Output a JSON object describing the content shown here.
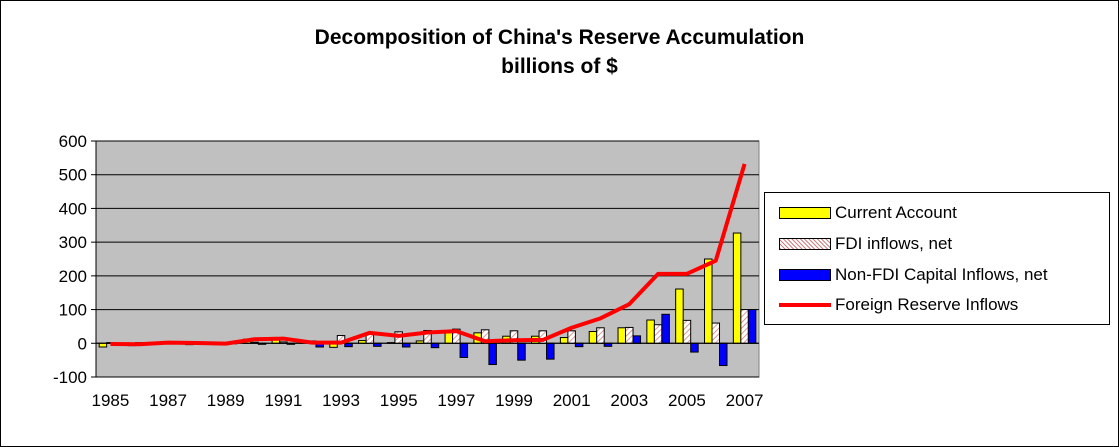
{
  "chart_data": {
    "type": "bar",
    "title": "Decomposition of China's Reserve Accumulation",
    "subtitle": "billions of $",
    "x": [
      1985,
      1986,
      1987,
      1988,
      1989,
      1990,
      1991,
      1992,
      1993,
      1994,
      1995,
      1996,
      1997,
      1998,
      1999,
      2000,
      2001,
      2002,
      2003,
      2004,
      2005,
      2006,
      2007
    ],
    "x_tick_labels": [
      "1985",
      "1987",
      "1989",
      "1991",
      "1993",
      "1995",
      "1997",
      "1999",
      "2001",
      "2003",
      "2005",
      "2007"
    ],
    "y_tick_labels": [
      "600",
      "500",
      "400",
      "300",
      "200",
      "100",
      "0",
      "-100"
    ],
    "ylim": [
      -100,
      600
    ],
    "grid": "horizontal",
    "legend_position": "right",
    "series": [
      {
        "name": "Current Account",
        "type": "bar",
        "color": "#ffff00",
        "values": [
          -11,
          -7,
          0,
          -4,
          -4,
          12,
          13,
          6,
          -12,
          8,
          2,
          7,
          37,
          31,
          21,
          21,
          17,
          35,
          46,
          69,
          161,
          250,
          327
        ]
      },
      {
        "name": "FDI inflows, net",
        "type": "bar",
        "pattern": "hatch",
        "values": [
          2,
          2,
          2,
          2,
          2,
          3,
          4,
          7,
          23,
          32,
          34,
          38,
          42,
          40,
          37,
          37,
          37,
          46,
          47,
          55,
          68,
          60,
          100
        ]
      },
      {
        "name": "Non-FDI Capital Inflows, net",
        "type": "bar",
        "color": "#0000ff",
        "values": [
          -1,
          -1,
          -1,
          -1,
          -1,
          -3,
          -3,
          -11,
          -10,
          -9,
          -11,
          -13,
          -42,
          -63,
          -50,
          -47,
          -10,
          -9,
          22,
          86,
          -26,
          -66,
          100
        ]
      },
      {
        "name": "Foreign Reserve Inflows",
        "type": "line",
        "color": "#ff0000",
        "values": [
          -2,
          -3,
          2,
          1,
          -1,
          12,
          14,
          2,
          2,
          31,
          22,
          32,
          36,
          6,
          9,
          10,
          46,
          74,
          116,
          206,
          206,
          245,
          532
        ]
      }
    ]
  }
}
